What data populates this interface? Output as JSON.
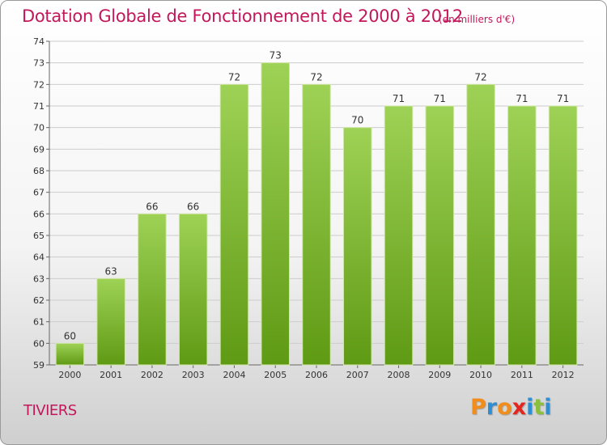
{
  "header": {
    "title": "Dotation Globale de Fonctionnement de 2000 à 2012",
    "subtitle": "(en milliers d'€)"
  },
  "footer": {
    "commune": "TIVIERS",
    "logo": [
      "P",
      "r",
      "o",
      "x",
      "i",
      "t",
      "i"
    ]
  },
  "colors": {
    "accent": "#c2185b",
    "bar_top": "#9ed256",
    "bar_bottom": "#5f9a14",
    "grid": "#cccccc",
    "logo": [
      "#f28c1b",
      "#2f8ed2",
      "#f28c1b",
      "#e2261f",
      "#2f8ed2",
      "#8ac03e",
      "#2f8ed2"
    ]
  },
  "chart_data": {
    "type": "bar",
    "title": "Dotation Globale de Fonctionnement de 2000 à 2012",
    "subtitle": "(en milliers d'€)",
    "xlabel": "",
    "ylabel": "",
    "categories": [
      "2000",
      "2001",
      "2002",
      "2003",
      "2004",
      "2005",
      "2006",
      "2007",
      "2008",
      "2009",
      "2010",
      "2011",
      "2012"
    ],
    "values": [
      60,
      63,
      66,
      66,
      72,
      73,
      72,
      70,
      71,
      71,
      72,
      71,
      71
    ],
    "ylim": [
      59,
      74
    ],
    "yticks": [
      59,
      60,
      61,
      62,
      63,
      64,
      65,
      66,
      67,
      68,
      69,
      70,
      71,
      72,
      73,
      74
    ],
    "grid": true
  }
}
